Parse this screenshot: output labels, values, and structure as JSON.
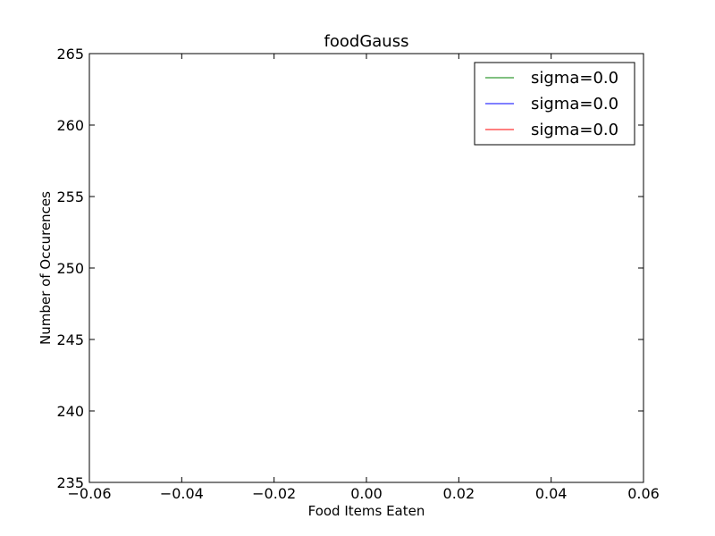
{
  "chart_data": {
    "type": "line",
    "title": "foodGauss",
    "xlabel": "Food Items Eaten",
    "ylabel": "Number of Occurences",
    "xlim": [
      -0.06,
      0.06
    ],
    "ylim": [
      235,
      265
    ],
    "x_ticks": [
      "−0.06",
      "−0.04",
      "−0.02",
      "0.00",
      "0.02",
      "0.04",
      "0.06"
    ],
    "y_ticks": [
      "235",
      "240",
      "245",
      "250",
      "255",
      "260",
      "265"
    ],
    "grid": false,
    "legend_position": "top-right",
    "series": [
      {
        "name": "sigma=0.0",
        "color": "#008000",
        "x": [],
        "y": []
      },
      {
        "name": "sigma=0.0",
        "color": "#0000ff",
        "x": [],
        "y": []
      },
      {
        "name": "sigma=0.0",
        "color": "#ff0000",
        "x": [],
        "y": []
      }
    ]
  }
}
